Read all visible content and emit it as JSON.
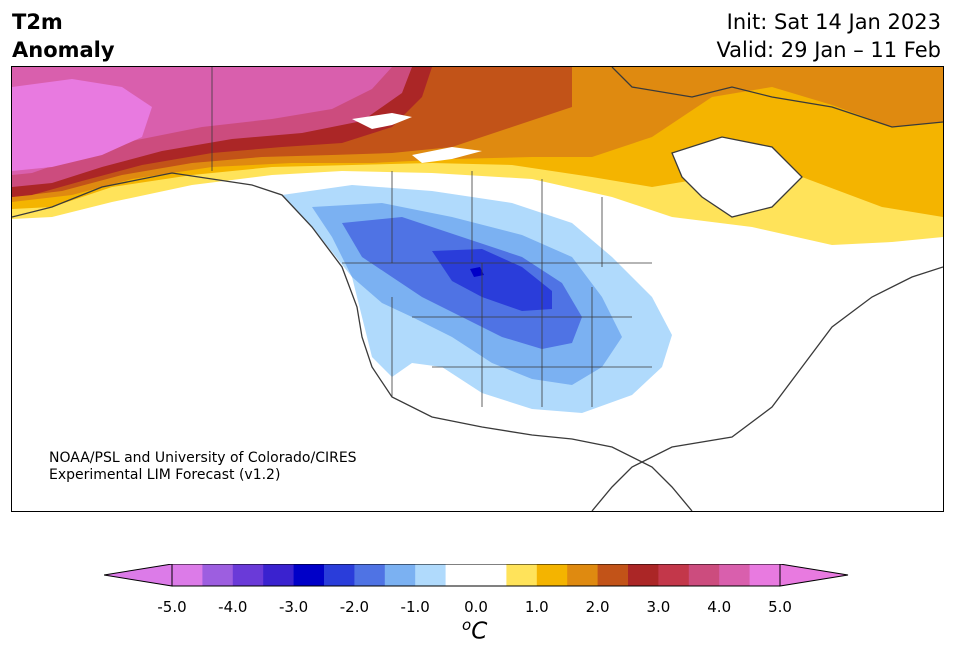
{
  "header": {
    "title_line1": "T2m",
    "title_line2": "Anomaly",
    "init": "Init: Sat 14 Jan 2023",
    "valid": "Valid: 29 Jan – 11 Feb"
  },
  "credit": {
    "line1": "NOAA/PSL and University of Colorado/CIRES",
    "line2": "Experimental LIM Forecast (v1.2)"
  },
  "colorbar": {
    "tick_labels": [
      "-5.0",
      "-4.0",
      "-3.0",
      "-2.0",
      "-1.0",
      "0.0",
      "1.0",
      "2.0",
      "3.0",
      "4.0",
      "5.0"
    ],
    "unit_main": "C",
    "unit_sup": "o",
    "colors": [
      "#dc7be8",
      "#9d5ee0",
      "#6a3ad8",
      "#3a22cf",
      "#0000c8",
      "#2a3dda",
      "#4f73e4",
      "#7bb1f2",
      "#b0dafc",
      "#ffffff",
      "#ffffff",
      "#ffe35a",
      "#f4b400",
      "#df8a10",
      "#c25318",
      "#ab2626",
      "#c3374a",
      "#cc4c7e",
      "#d95fad",
      "#e87ae0"
    ],
    "under_color": "#dc7be8",
    "over_color": "#e87ae0"
  },
  "map": {
    "region": "North America",
    "variable": "2 m temperature anomaly"
  }
}
